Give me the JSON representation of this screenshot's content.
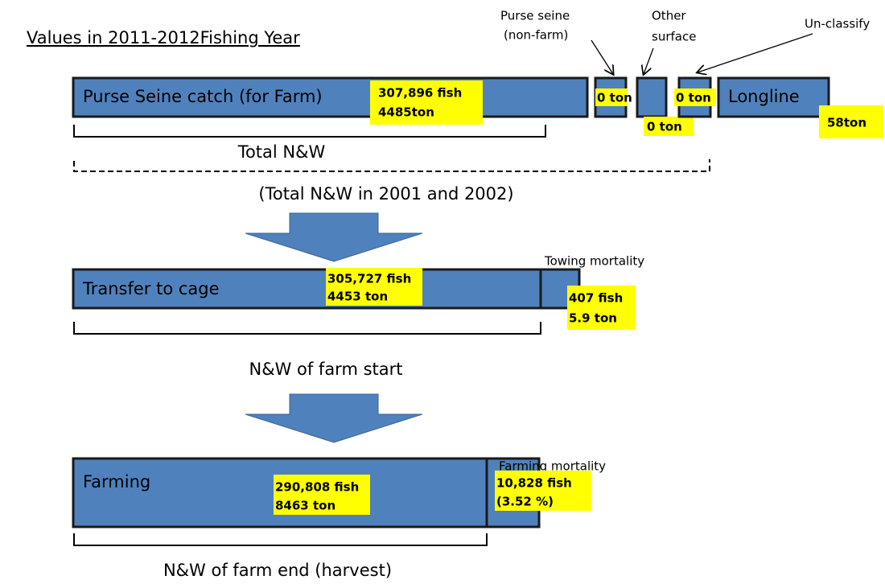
{
  "title": "Values in 2011-2012Fishing Year",
  "row1": {
    "main": {
      "label": "Purse Seine catch (for Farm)",
      "value_lines": [
        "307,896 fish",
        "4485ton"
      ]
    },
    "purse_nonfarm": {
      "caption_lines": [
        "Purse seine",
        "(non-farm)"
      ],
      "value": "0 ton"
    },
    "other_surface": {
      "caption_lines": [
        "Other",
        "surface"
      ],
      "value": "0 ton"
    },
    "unclassify": {
      "caption": "Un-classify",
      "value": "0 ton"
    },
    "longline": {
      "label": "Longline",
      "value": "58ton"
    },
    "bracket_label": "Total N&W",
    "dashed_bracket_label": "(Total N&W in 2001 and 2002)"
  },
  "row2": {
    "main": {
      "label": "Transfer to cage",
      "value_lines": [
        "305,727 fish",
        "4453 ton"
      ]
    },
    "mortality": {
      "caption": "Towing mortality",
      "value_lines": [
        "407 fish",
        "5.9 ton"
      ]
    },
    "bracket_label": "N&W of farm start"
  },
  "row3": {
    "main": {
      "label": "Farming",
      "value_lines": [
        "290,808 fish",
        "8463 ton"
      ]
    },
    "mortality": {
      "caption": "Farming mortality",
      "value_lines": [
        "10,828 fish",
        "(3.52 %)"
      ]
    },
    "bracket_label": "N&W of farm end (harvest)"
  }
}
